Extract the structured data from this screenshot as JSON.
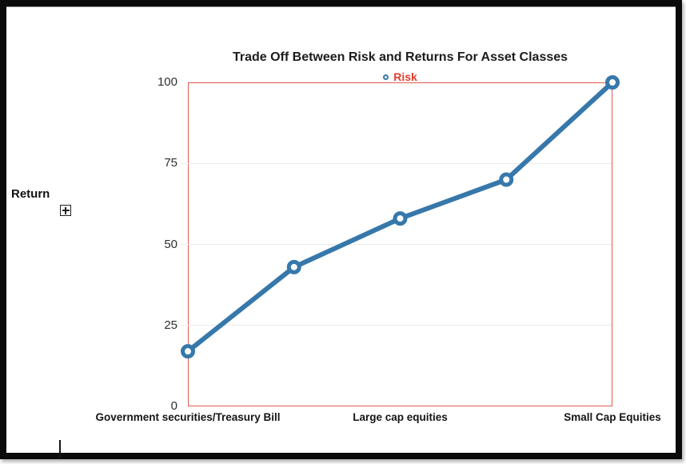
{
  "chart_data": {
    "type": "line",
    "title": "Trade Off Between Risk and Returns For Asset Classes",
    "ylabel": "Return",
    "xlabel": "",
    "categories": [
      "Government securities/Treasury Bill",
      "",
      "Large cap equities",
      "",
      "Small Cap Equities"
    ],
    "series": [
      {
        "name": "Risk",
        "values": [
          17,
          43,
          58,
          70,
          100
        ]
      }
    ],
    "yticks": [
      0,
      25,
      50,
      75,
      100
    ],
    "ylim": [
      0,
      100
    ],
    "grid": "horizontal",
    "legend_position": "top-center",
    "marker": "open-circle",
    "colors": {
      "line": "#3778ab",
      "marker_fill": "#ffffff",
      "plot_border": "#dd5c50",
      "legend_text": "#e23b2b",
      "grid_line": "#ececec",
      "title_text": "#1c1c1c"
    }
  },
  "icons": {
    "expand": "plus-in-box",
    "legend_marker": "open-circle",
    "cursor": "text-cursor"
  }
}
